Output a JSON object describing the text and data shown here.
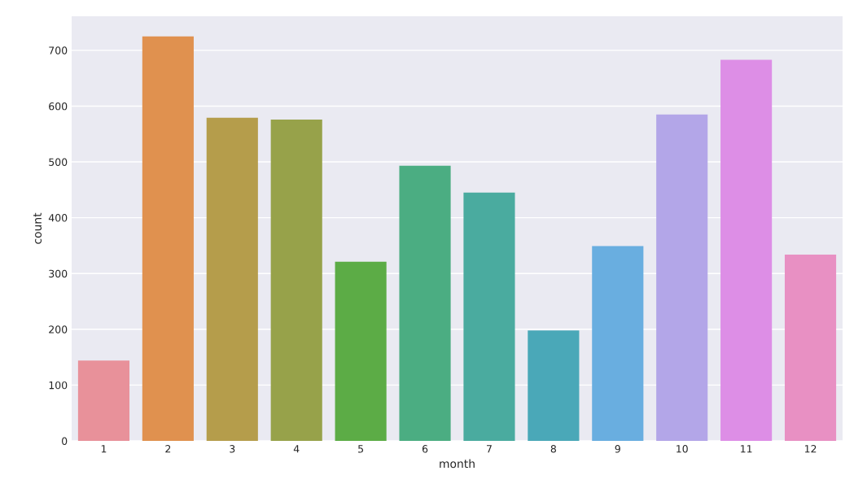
{
  "chart_data": {
    "type": "bar",
    "xlabel": "month",
    "ylabel": "count",
    "categories": [
      "1",
      "2",
      "3",
      "4",
      "5",
      "6",
      "7",
      "8",
      "9",
      "10",
      "11",
      "12"
    ],
    "values": [
      144,
      725,
      579,
      576,
      321,
      493,
      445,
      198,
      349,
      585,
      683,
      334
    ],
    "colors": [
      "#e8919a",
      "#e0914f",
      "#b59d4b",
      "#97a24a",
      "#5cac46",
      "#4bad82",
      "#4aab9f",
      "#4aa8b8",
      "#69aee0",
      "#b3a6e8",
      "#dd8ee6",
      "#e890c3"
    ],
    "ylim": [
      0,
      761
    ],
    "yticks": [
      0,
      100,
      200,
      300,
      400,
      500,
      600,
      700
    ],
    "grid": "y"
  }
}
